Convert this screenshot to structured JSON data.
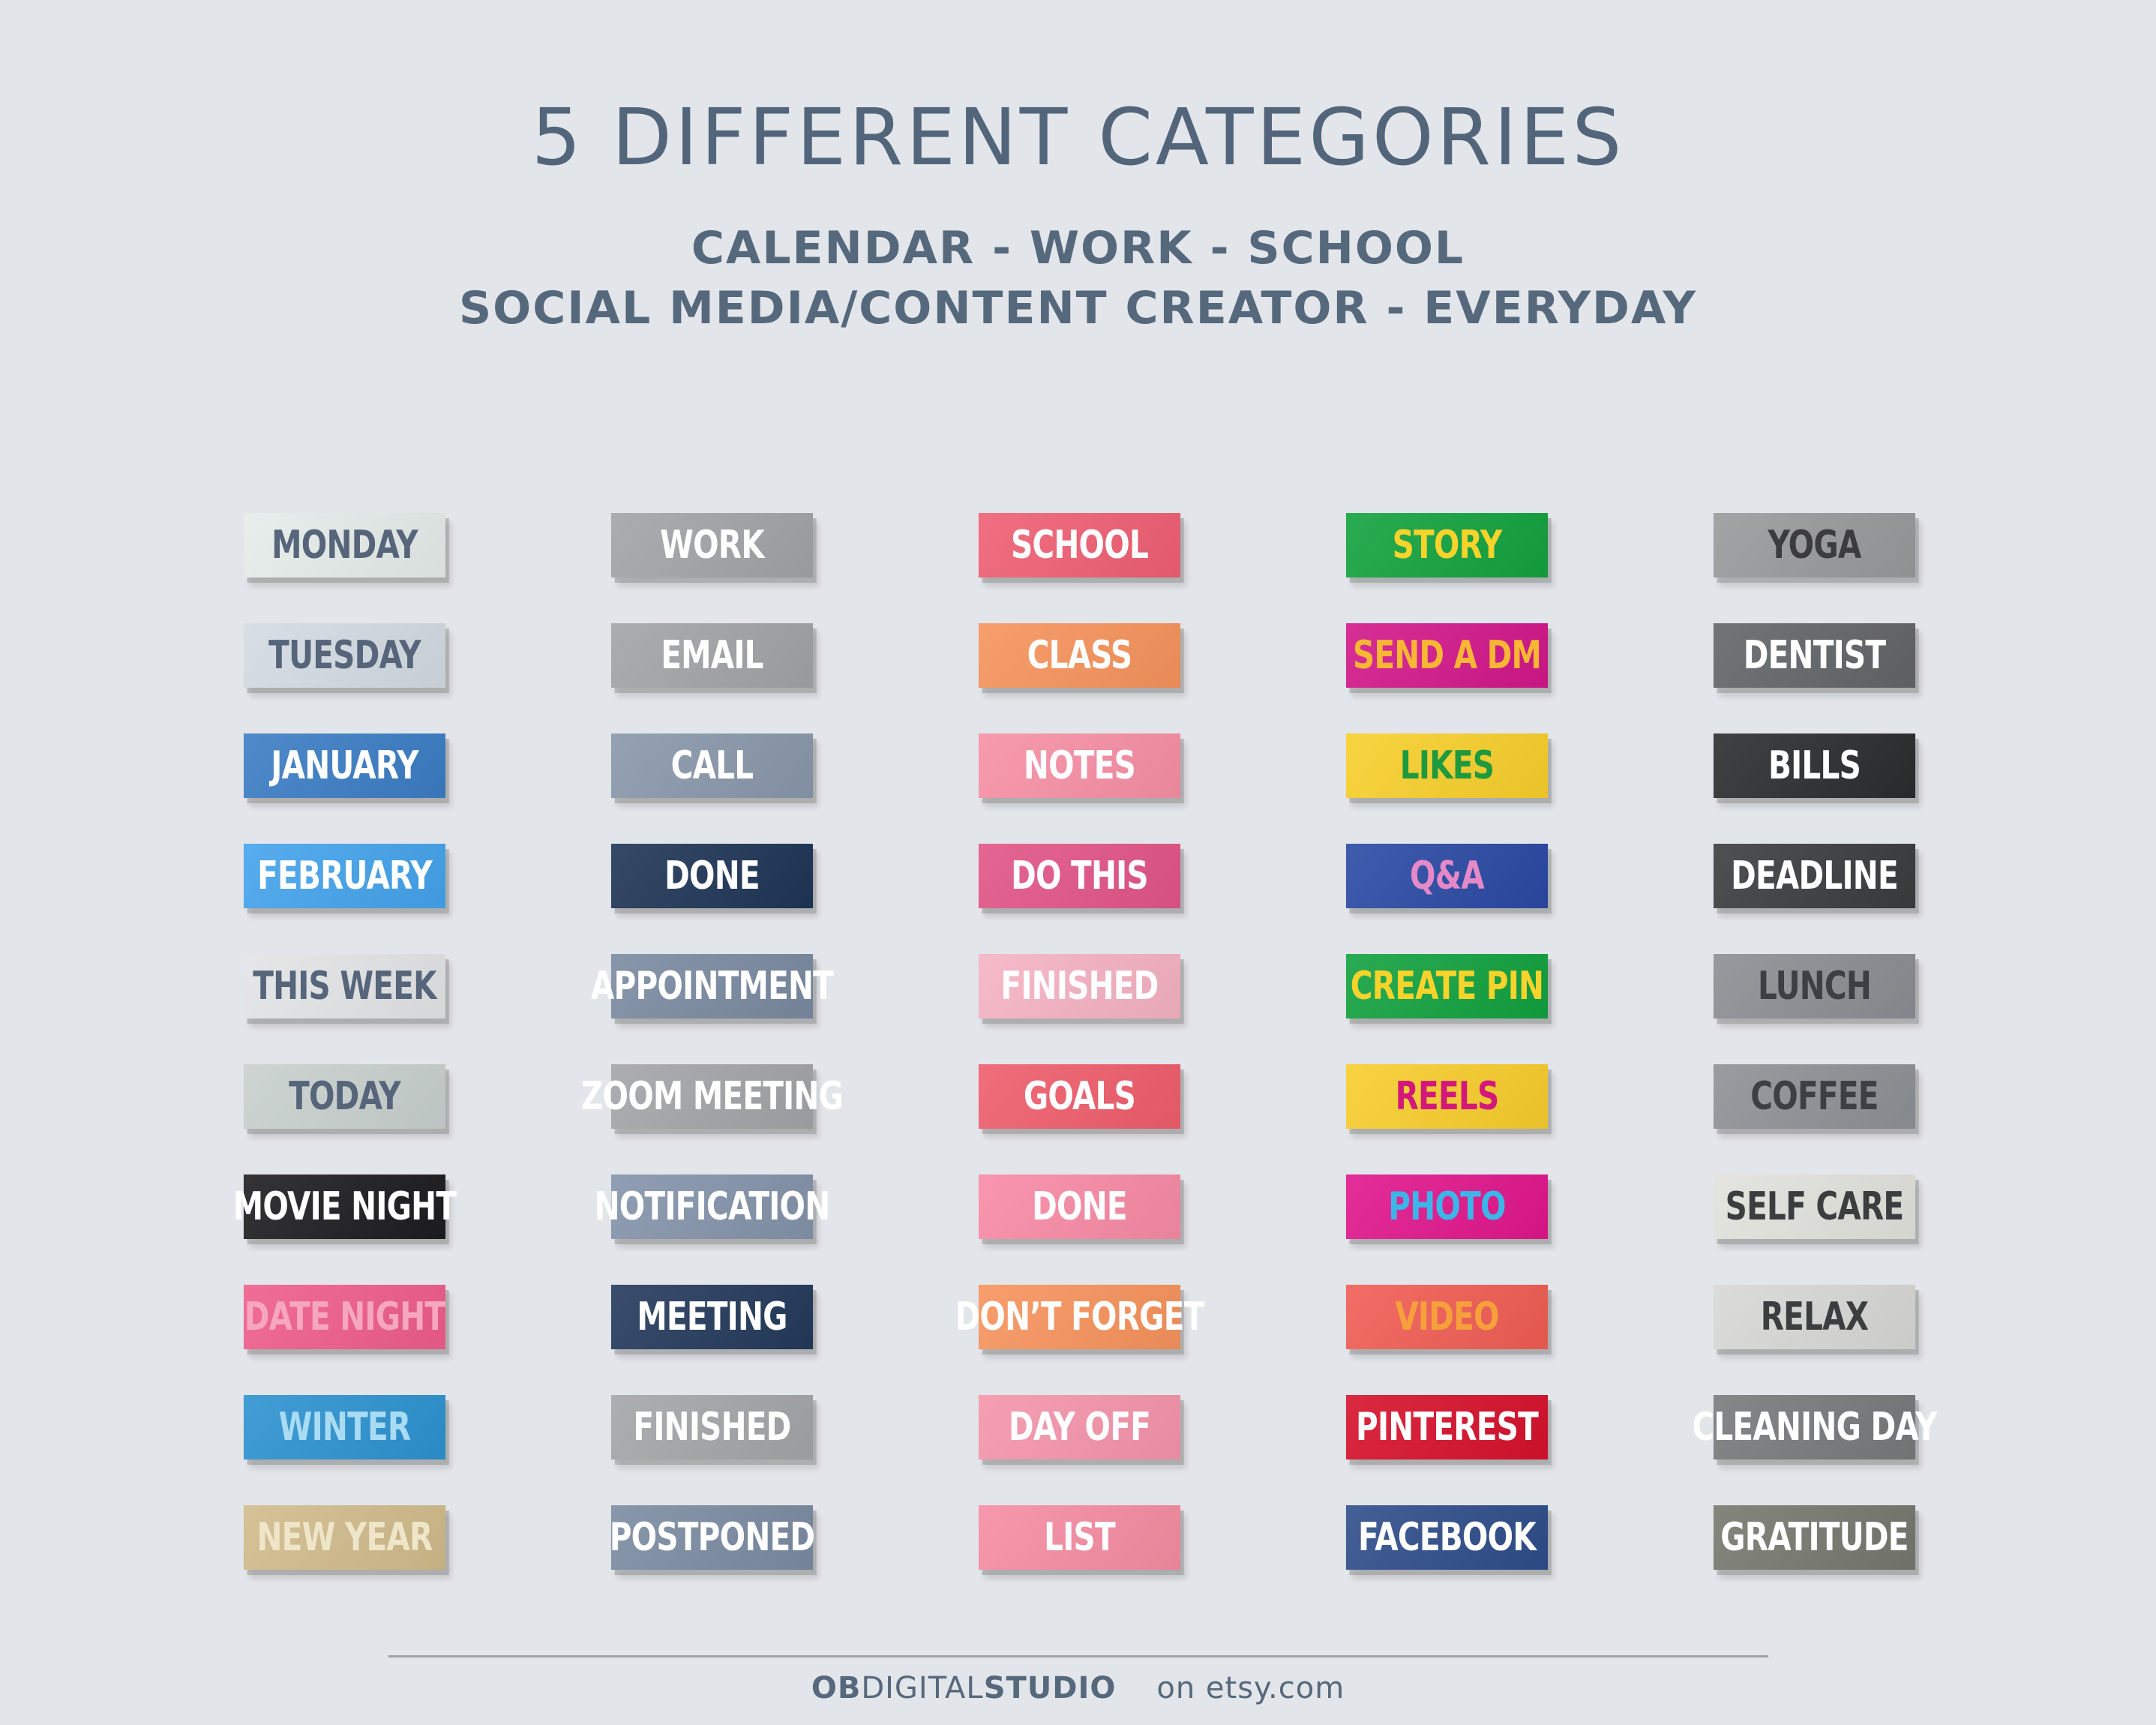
{
  "header": {
    "title": "5 DIFFERENT CATEGORIES",
    "subtitle_line1": "CALENDAR - WORK - SCHOOL",
    "subtitle_line2": "SOCIAL MEDIA/CONTENT CREATOR - EVERYDAY"
  },
  "columns": [
    {
      "labels": [
        {
          "text": "MONDAY",
          "bg": "#e5ece9",
          "fg": "#56657a"
        },
        {
          "text": "TUESDAY",
          "bg": "#d3dbe3",
          "fg": "#56657a"
        },
        {
          "text": "JANUARY",
          "bg": "#3b7dc4",
          "fg": "#ffffff"
        },
        {
          "text": "FEBRUARY",
          "bg": "#44a3eb",
          "fg": "#ffffff"
        },
        {
          "text": "THIS WEEK",
          "bg": "#e3e4e6",
          "fg": "#56657a"
        },
        {
          "text": "TODAY",
          "bg": "#c8d0ce",
          "fg": "#56657a"
        },
        {
          "text": "MOVIE NIGHT",
          "bg": "#1d1d1f",
          "fg": "#ffffff"
        },
        {
          "text": "DATE NIGHT",
          "bg": "#ee5d8b",
          "fg": "#f6a7bf"
        },
        {
          "text": "WINTER",
          "bg": "#2d92d0",
          "fg": "#a9dcf3"
        },
        {
          "text": "NEW YEAR",
          "bg": "#d0bb8b",
          "fg": "#efe5c8"
        }
      ]
    },
    {
      "labels": [
        {
          "text": "WORK",
          "bg": "#a1a3a6",
          "fg": "#ffffff"
        },
        {
          "text": "EMAIL",
          "bg": "#a2a3a6",
          "fg": "#ffffff"
        },
        {
          "text": "CALL",
          "bg": "#8897aa",
          "fg": "#ffffff"
        },
        {
          "text": "DONE",
          "bg": "#1f3556",
          "fg": "#ffffff"
        },
        {
          "text": "APPOINTMENT",
          "bg": "#7a8aa0",
          "fg": "#ffffff"
        },
        {
          "text": "ZOOM MEETING",
          "bg": "#a3a4a7",
          "fg": "#ffffff"
        },
        {
          "text": "NOTIFICATION",
          "bg": "#8493aa",
          "fg": "#ffffff"
        },
        {
          "text": "MEETING",
          "bg": "#24395b",
          "fg": "#ffffff"
        },
        {
          "text": "FINISHED",
          "bg": "#a4a5a8",
          "fg": "#ffffff"
        },
        {
          "text": "POSTPONED",
          "bg": "#7b8ba1",
          "fg": "#ffffff"
        }
      ]
    },
    {
      "labels": [
        {
          "text": "SCHOOL",
          "bg": "#ef5f73",
          "fg": "#ffffff"
        },
        {
          "text": "CLASS",
          "bg": "#f6935c",
          "fg": "#ffffff"
        },
        {
          "text": "NOTES",
          "bg": "#f78fa5",
          "fg": "#ffffff"
        },
        {
          "text": "DO THIS",
          "bg": "#e25586",
          "fg": "#ffffff"
        },
        {
          "text": "FINISHED",
          "bg": "#f5b2c2",
          "fg": "#ffffff"
        },
        {
          "text": "GOALS",
          "bg": "#ef5d6c",
          "fg": "#ffffff"
        },
        {
          "text": "DONE",
          "bg": "#f88aa5",
          "fg": "#ffffff"
        },
        {
          "text": "DON’T FORGET",
          "bg": "#f7935d",
          "fg": "#ffffff"
        },
        {
          "text": "DAY OFF",
          "bg": "#f594aa",
          "fg": "#ffffff"
        },
        {
          "text": "LIST",
          "bg": "#f58ca2",
          "fg": "#ffffff"
        }
      ]
    },
    {
      "labels": [
        {
          "text": "STORY",
          "bg": "#13a23e",
          "fg": "#f7d32b"
        },
        {
          "text": "SEND A DM",
          "bg": "#d2178a",
          "fg": "#f7b634"
        },
        {
          "text": "LIKES",
          "bg": "#f7cf2b",
          "fg": "#1e9a3e"
        },
        {
          "text": "Q&A",
          "bg": "#2a49a3",
          "fg": "#e589c8"
        },
        {
          "text": "CREATE PIN",
          "bg": "#12a13f",
          "fg": "#f7d32b"
        },
        {
          "text": "REELS",
          "bg": "#f7cd2c",
          "fg": "#d3187b"
        },
        {
          "text": "PHOTO",
          "bg": "#e0168c",
          "fg": "#3bb6e8"
        },
        {
          "text": "VIDEO",
          "bg": "#f05d54",
          "fg": "#f6a03b"
        },
        {
          "text": "PINTEREST",
          "bg": "#d6112c",
          "fg": "#ffffff"
        },
        {
          "text": "FACEBOOK",
          "bg": "#2f4d8a",
          "fg": "#ffffff"
        }
      ]
    },
    {
      "labels": [
        {
          "text": "YOGA",
          "bg": "#98999b",
          "fg": "#3c3c3e"
        },
        {
          "text": "DENTIST",
          "bg": "#626568",
          "fg": "#ffffff"
        },
        {
          "text": "BILLS",
          "bg": "#2b2c2e",
          "fg": "#ffffff"
        },
        {
          "text": "DEADLINE",
          "bg": "#3b3c3e",
          "fg": "#ffffff"
        },
        {
          "text": "LUNCH",
          "bg": "#8a8e92",
          "fg": "#3c4044"
        },
        {
          "text": "COFFEE",
          "bg": "#8d9195",
          "fg": "#3c4044"
        },
        {
          "text": "SELF CARE",
          "bg": "#e1e2dc",
          "fg": "#3c3d3f"
        },
        {
          "text": "RELAX",
          "bg": "#d7d8d6",
          "fg": "#3c3d3f"
        },
        {
          "text": "CLEANING DAY",
          "bg": "#78797b",
          "fg": "#ffffff"
        },
        {
          "text": "GRATITUDE",
          "bg": "#76786f",
          "fg": "#ffffff"
        }
      ]
    }
  ],
  "footer": {
    "brand_ob": "OB",
    "brand_digital": "DIGITAL",
    "brand_studio": "STUDIO",
    "site": "on etsy.com"
  }
}
